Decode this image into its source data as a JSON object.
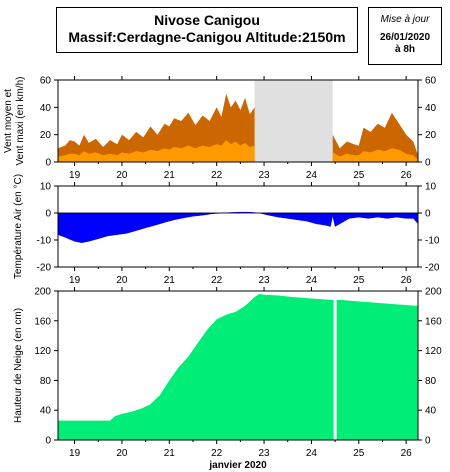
{
  "header": {
    "title_line1": "Nivose Canigou",
    "title_line2": "Massif:Cerdagne-Canigou Altitude:2150m"
  },
  "update": {
    "label": "Mise à jour",
    "date": "26/01/2020",
    "time": "à 8h"
  },
  "colors": {
    "wind_max": "#cc6600",
    "wind_mean": "#ff9900",
    "missing": "#e0e0e0",
    "temperature": "#0000ff",
    "snow": "#00ee77"
  },
  "chart_data": [
    {
      "type": "area",
      "ylabel_line1": "Vent moyen et",
      "ylabel_line2": "Vent maxi (en km/h)",
      "ylim": [
        0,
        60
      ],
      "yticks": [
        0,
        20,
        40,
        60
      ],
      "xlim": [
        18.65,
        26.25
      ],
      "xticks": [
        19,
        20,
        21,
        22,
        23,
        24,
        25,
        26
      ],
      "xticklabels": [
        "19",
        "20",
        "21",
        "22",
        "23",
        "24",
        "25",
        "26"
      ],
      "missing_range": [
        22.8,
        24.45
      ],
      "series": [
        {
          "role": "max",
          "x": [
            18.65,
            18.8,
            18.9,
            19.0,
            19.1,
            19.2,
            19.3,
            19.45,
            19.6,
            19.75,
            19.9,
            20.0,
            20.15,
            20.3,
            20.45,
            20.6,
            20.75,
            20.9,
            21.0,
            21.1,
            21.25,
            21.4,
            21.55,
            21.7,
            21.85,
            22.0,
            22.1,
            22.2,
            22.3,
            22.4,
            22.5,
            22.6,
            22.7,
            22.8,
            24.45,
            24.6,
            24.75,
            24.9,
            25.0,
            25.1,
            25.25,
            25.4,
            25.55,
            25.7,
            25.85,
            26.0,
            26.15,
            26.25
          ],
          "values": [
            10,
            12,
            16,
            15,
            12,
            20,
            14,
            17,
            11,
            16,
            13,
            20,
            16,
            22,
            18,
            26,
            20,
            28,
            26,
            32,
            30,
            36,
            27,
            34,
            30,
            40,
            33,
            50,
            40,
            45,
            38,
            47,
            35,
            40,
            20,
            10,
            15,
            13,
            12,
            25,
            22,
            28,
            25,
            36,
            28,
            20,
            15,
            5
          ]
        },
        {
          "role": "mean",
          "x": [
            18.65,
            18.8,
            18.9,
            19.0,
            19.1,
            19.2,
            19.3,
            19.45,
            19.6,
            19.75,
            19.9,
            20.0,
            20.15,
            20.3,
            20.45,
            20.6,
            20.75,
            20.9,
            21.0,
            21.1,
            21.25,
            21.4,
            21.55,
            21.7,
            21.85,
            22.0,
            22.1,
            22.2,
            22.3,
            22.4,
            22.5,
            22.6,
            22.7,
            22.8,
            24.45,
            24.6,
            24.75,
            24.9,
            25.0,
            25.1,
            25.25,
            25.4,
            25.55,
            25.7,
            25.85,
            26.0,
            26.15,
            26.25
          ],
          "values": [
            4,
            5,
            6,
            6,
            5,
            8,
            6,
            7,
            5,
            6,
            5,
            7,
            6,
            8,
            7,
            9,
            8,
            10,
            9,
            11,
            10,
            12,
            10,
            12,
            11,
            13,
            12,
            16,
            13,
            15,
            12,
            14,
            11,
            12,
            7,
            4,
            6,
            5,
            5,
            8,
            7,
            9,
            8,
            10,
            9,
            6,
            5,
            2
          ]
        }
      ]
    },
    {
      "type": "area",
      "ylabel": "Température Air (en °C)",
      "ylim": [
        -20,
        10
      ],
      "yticks": [
        -20,
        -10,
        0,
        10
      ],
      "xlim": [
        18.65,
        26.25
      ],
      "xticks": [
        19,
        20,
        21,
        22,
        23,
        24,
        25,
        26
      ],
      "xticklabels": [
        "19",
        "20",
        "21",
        "22",
        "23",
        "24",
        "25",
        "26"
      ],
      "series": [
        {
          "x": [
            18.65,
            18.8,
            19.0,
            19.15,
            19.3,
            19.5,
            19.7,
            19.9,
            20.1,
            20.3,
            20.5,
            20.7,
            20.9,
            21.1,
            21.3,
            21.5,
            21.7,
            21.9,
            22.1,
            22.3,
            22.5,
            22.7,
            22.9,
            23.1,
            23.3,
            23.5,
            23.7,
            23.9,
            24.1,
            24.3,
            24.4,
            24.45,
            24.5,
            24.6,
            24.8,
            25.0,
            25.2,
            25.4,
            25.6,
            25.8,
            26.0,
            26.15,
            26.25
          ],
          "values": [
            -8,
            -9,
            -10.5,
            -11,
            -10.5,
            -9.5,
            -8.5,
            -8,
            -7.5,
            -6.5,
            -5.5,
            -4.5,
            -3.5,
            -2.5,
            -1.8,
            -1.2,
            -0.8,
            -0.3,
            0,
            0.2,
            0.3,
            0.3,
            0,
            -0.8,
            -1.5,
            -2,
            -2.5,
            -3,
            -4,
            -4.5,
            -5,
            -1,
            -5,
            -4,
            -2,
            -1.5,
            -2,
            -1.5,
            -2,
            -1.5,
            -2,
            -2,
            -4
          ]
        }
      ]
    },
    {
      "type": "area",
      "ylabel": "Hauteur de Neige (en cm)",
      "ylim": [
        0,
        200
      ],
      "yticks": [
        0,
        40,
        80,
        120,
        160,
        200
      ],
      "xlim": [
        18.65,
        26.25
      ],
      "xticks": [
        19,
        20,
        21,
        22,
        23,
        24,
        25,
        26
      ],
      "xticklabels": [
        "19",
        "20",
        "21",
        "22",
        "23",
        "24",
        "25",
        "26"
      ],
      "xlabel": "janvier 2020",
      "gap_at": 24.5,
      "series": [
        {
          "x": [
            18.65,
            19.0,
            19.5,
            19.75,
            19.85,
            20.0,
            20.2,
            20.4,
            20.6,
            20.8,
            21.0,
            21.2,
            21.4,
            21.6,
            21.8,
            22.0,
            22.2,
            22.4,
            22.6,
            22.8,
            22.9,
            23.0,
            23.3,
            23.6,
            24.0,
            24.4,
            24.5,
            24.6,
            25.0,
            25.4,
            25.8,
            26.25
          ],
          "values": [
            26,
            26,
            26,
            26,
            32,
            35,
            38,
            42,
            48,
            60,
            80,
            98,
            112,
            130,
            148,
            162,
            168,
            172,
            180,
            192,
            196,
            195,
            194,
            192,
            190,
            188,
            188,
            188,
            186,
            184,
            182,
            180
          ]
        }
      ]
    }
  ]
}
